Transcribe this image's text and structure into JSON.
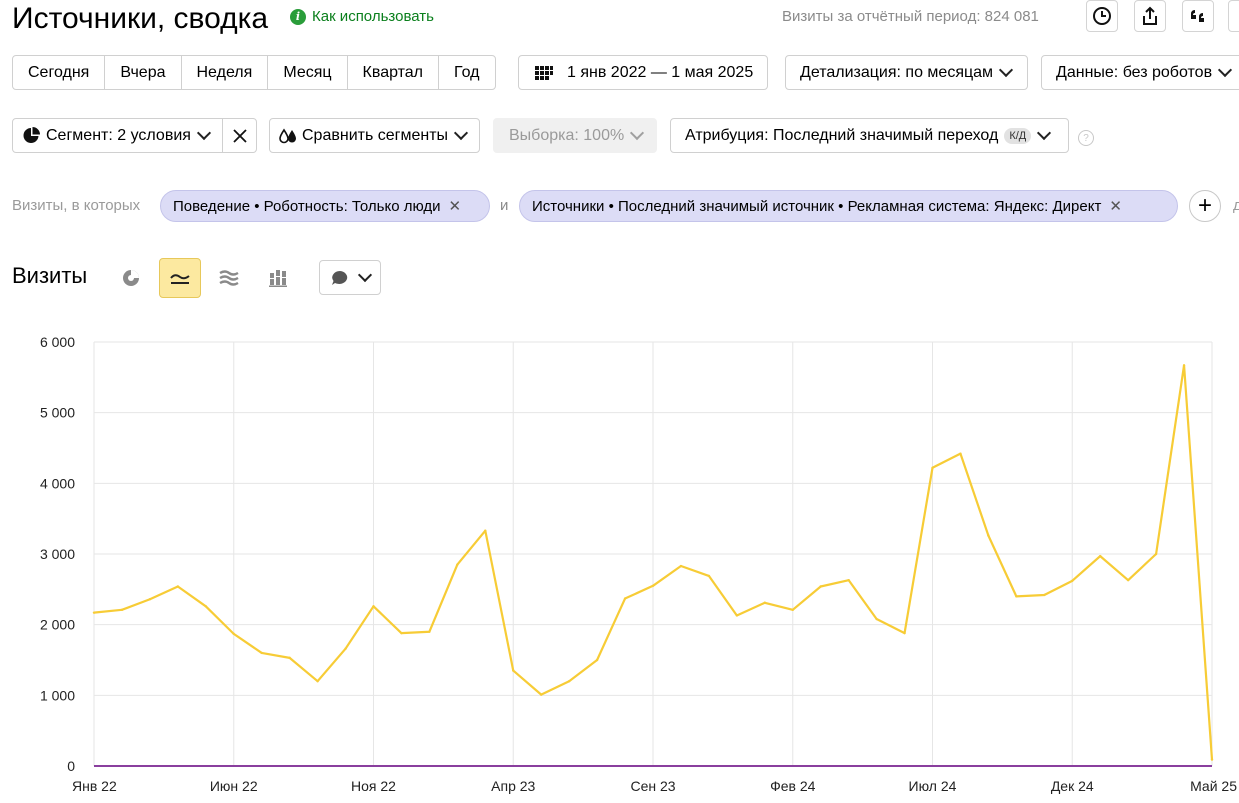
{
  "header": {
    "title": "Источники, сводка",
    "howto_label": "Как использовать",
    "visits_total": "Визиты за отчётный период: 824 081",
    "icons": [
      "clock-icon",
      "share-icon",
      "quote-icon"
    ]
  },
  "period_buttons": [
    "Сегодня",
    "Вчера",
    "Неделя",
    "Месяц",
    "Квартал",
    "Год"
  ],
  "date_range": "1 янв 2022 — 1 мая 2025",
  "detail_label": "Детализация: по месяцам",
  "data_label": "Данные: без роботов",
  "segment_label": "Сегмент: 2 условия",
  "compare_label": "Сравнить сегменты",
  "sample_label": "Выборка: 100%",
  "attribution_label": "Атрибуция: Последний значимый переход",
  "attribution_badge": "К/Д",
  "help_glyph": "?",
  "filters": {
    "prefix": "Визиты, в которых",
    "chip1": "Поведение • Роботность: Только люди",
    "and_label": "и",
    "chip2": "Источники • Последний значимый источник • Рекламная система: Яндекс: Директ",
    "trailing": "д"
  },
  "section_title": "Визиты",
  "colors": {
    "series": "#f7cc36",
    "baseline": "#8a3f9e",
    "grid": "#e6e6e6",
    "chip_bg": "#dcdcf6",
    "active_view": "#fce9a0"
  },
  "chart_data": {
    "type": "line",
    "x": [
      "Янв 22",
      "Фев 22",
      "Мар 22",
      "Апр 22",
      "Май 22",
      "Июн 22",
      "Июл 22",
      "Авг 22",
      "Сен 22",
      "Окт 22",
      "Ноя 22",
      "Дек 22",
      "Янв 23",
      "Фев 23",
      "Мар 23",
      "Апр 23",
      "Май 23",
      "Июн 23",
      "Июл 23",
      "Авг 23",
      "Сен 23",
      "Окт 23",
      "Ноя 23",
      "Дек 23",
      "Янв 24",
      "Фев 24",
      "Мар 24",
      "Апр 24",
      "Май 24",
      "Июн 24",
      "Июл 24",
      "Авг 24",
      "Сен 24",
      "Окт 24",
      "Ноя 24",
      "Дек 24",
      "Янв 25",
      "Фев 25",
      "Мар 25",
      "Апр 25",
      "Май 25"
    ],
    "series": [
      {
        "values": [
          2170,
          2210,
          2360,
          2540,
          2260,
          1870,
          1600,
          1530,
          1200,
          1660,
          2260,
          1880,
          1900,
          2850,
          3330,
          1350,
          1010,
          1200,
          1500,
          2370,
          2550,
          2830,
          2690,
          2130,
          2310,
          2210,
          2540,
          2630,
          2080,
          1880,
          4220,
          4420,
          3260,
          2400,
          2420,
          2620,
          2970,
          2630,
          3000,
          5670,
          90
        ]
      },
      {
        "values": [
          0,
          0,
          0,
          0,
          0,
          0,
          0,
          0,
          0,
          0,
          0,
          0,
          0,
          0,
          0,
          0,
          0,
          0,
          0,
          0,
          0,
          0,
          0,
          0,
          0,
          0,
          0,
          0,
          0,
          0,
          0,
          0,
          0,
          0,
          0,
          0,
          0,
          0,
          0,
          0,
          0
        ]
      }
    ],
    "x_tick_labels": [
      "Янв 22",
      "Июн 22",
      "Ноя 22",
      "Апр 23",
      "Сен 23",
      "Фев 24",
      "Июл 24",
      "Дек 24",
      "Май 25"
    ],
    "y_ticks": [
      0,
      1000,
      2000,
      3000,
      4000,
      5000,
      6000
    ],
    "y_tick_labels": [
      "0",
      "1 000",
      "2 000",
      "3 000",
      "4 000",
      "5 000",
      "6 000"
    ],
    "ylim": [
      0,
      6000
    ],
    "grid": true,
    "title": "",
    "xlabel": "",
    "ylabel": ""
  }
}
